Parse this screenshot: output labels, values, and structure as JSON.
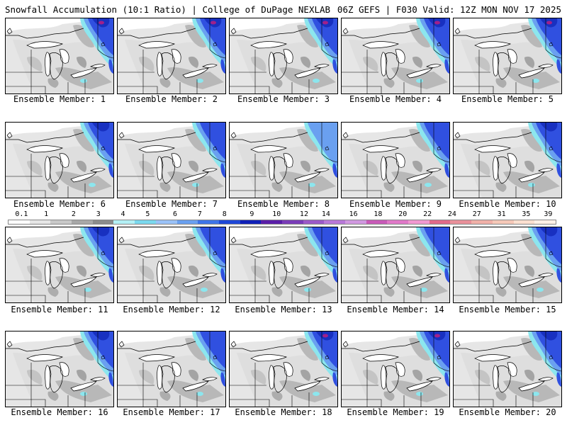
{
  "header": {
    "title_left": "Snowfall Accumulation (10:1 Ratio) | College of DuPage NEXLAB",
    "title_right": "06Z GEFS | F030 Valid: 12Z MON NOV 17 2025"
  },
  "members": [
    {
      "label": "Ensemble Member: 1"
    },
    {
      "label": "Ensemble Member: 2"
    },
    {
      "label": "Ensemble Member: 3"
    },
    {
      "label": "Ensemble Member: 4"
    },
    {
      "label": "Ensemble Member: 5"
    },
    {
      "label": "Ensemble Member: 6"
    },
    {
      "label": "Ensemble Member: 7"
    },
    {
      "label": "Ensemble Member: 8"
    },
    {
      "label": "Ensemble Member: 9"
    },
    {
      "label": "Ensemble Member: 10"
    },
    {
      "label": "Ensemble Member: 11"
    },
    {
      "label": "Ensemble Member: 12"
    },
    {
      "label": "Ensemble Member: 13"
    },
    {
      "label": "Ensemble Member: 14"
    },
    {
      "label": "Ensemble Member: 15"
    },
    {
      "label": "Ensemble Member: 16"
    },
    {
      "label": "Ensemble Member: 17"
    },
    {
      "label": "Ensemble Member: 18"
    },
    {
      "label": "Ensemble Member: 19"
    },
    {
      "label": "Ensemble Member: 20"
    }
  ],
  "legend": {
    "labels": [
      "0.1",
      "1",
      "2",
      "3",
      "4",
      "5",
      "6",
      "7",
      "8",
      "9",
      "10",
      "12",
      "14",
      "16",
      "18",
      "20",
      "22",
      "24",
      "27",
      "31",
      "35",
      "39"
    ],
    "colors": [
      "#ffffff",
      "#e6e6e6",
      "#c8c8c8",
      "#a8a8a8",
      "#8c8c8c",
      "#b3f0f5",
      "#7ad8ee",
      "#9ac2f7",
      "#6aa0f0",
      "#3f74e8",
      "#1f48d8",
      "#1020b8",
      "#5a1ea8",
      "#7a3cb8",
      "#9b59c8",
      "#b878d8",
      "#d098e0",
      "#c85ab8",
      "#e078c8",
      "#f098d0",
      "#e06a8a",
      "#e8909a",
      "#f0b0a8",
      "#f5c8b8",
      "#fae0d0",
      "#fff0e6"
    ]
  },
  "colors": {
    "snow_light_gray": "#e6e6e6",
    "snow_mid_gray": "#b8b8b8",
    "snow_dark_gray": "#8c8c8c",
    "snow_cyan": "#8ce6ee",
    "snow_light_blue": "#6aa0f0",
    "snow_blue": "#3050e0",
    "snow_deep_blue": "#1830c0",
    "snow_magenta": "#a0208a"
  }
}
